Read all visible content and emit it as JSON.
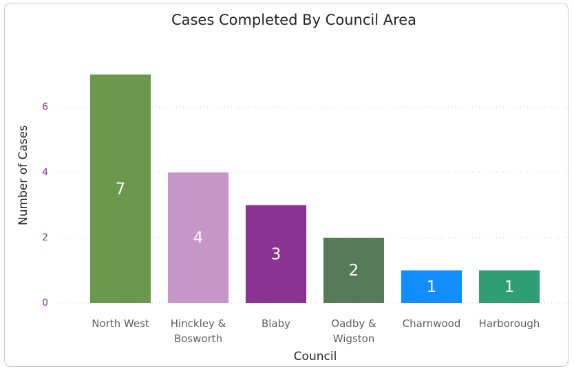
{
  "chart_data": {
    "type": "bar",
    "title": "Cases Completed By Council Area",
    "x_label": "Council",
    "y_label": "Number of Cases",
    "categories": [
      "North West",
      "Hinckley & Bosworth",
      "Blaby",
      "Oadby & Wigston",
      "Charnwood",
      "Harborough"
    ],
    "values": [
      7,
      4,
      3,
      2,
      1,
      1
    ],
    "colors": [
      "#6a994e",
      "#c497c8",
      "#8b3393",
      "#577b59",
      "#118dff",
      "#2f9e74"
    ],
    "ylim": [
      0,
      7.6
    ],
    "yticks": [
      0,
      2,
      4,
      6
    ],
    "grid": true
  }
}
